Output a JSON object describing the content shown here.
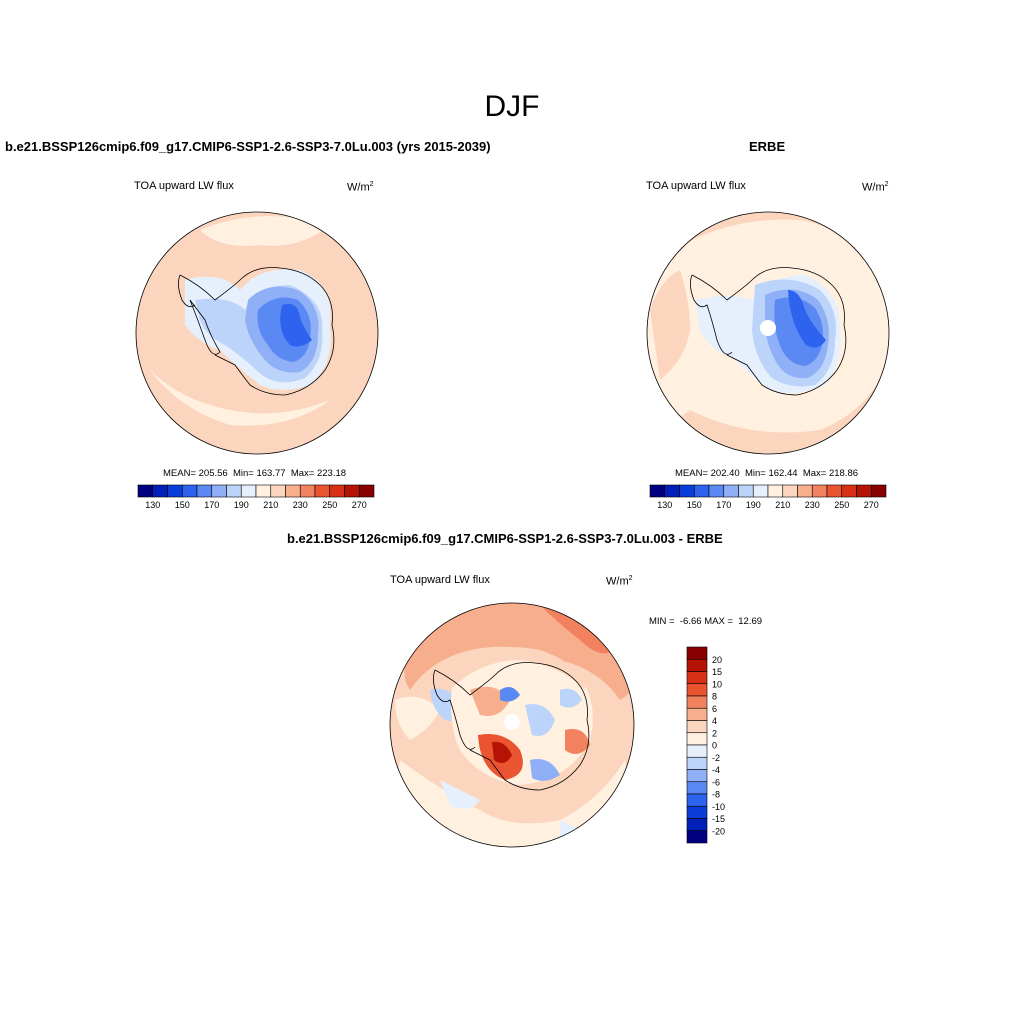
{
  "figure_title": "DJF",
  "panels": {
    "model": {
      "title": "b.e21.BSSP126cmip6.f09_g17.CMIP6-SSP1-2.6-SSP3-7.0Lu.003 (yrs 2015-2039)",
      "variable": "TOA upward LW flux",
      "units": "W/m",
      "units_exp": "2",
      "stats": {
        "mean_label": "MEAN=",
        "mean": "205.56",
        "min_label": "Min=",
        "min": "163.77",
        "max_label": "Max=",
        "max": "223.18"
      }
    },
    "obs": {
      "title": "ERBE",
      "variable": "TOA upward LW flux",
      "units": "W/m",
      "units_exp": "2",
      "stats": {
        "mean_label": "MEAN=",
        "mean": "202.40",
        "min_label": "Min=",
        "min": "162.44",
        "max_label": "Max=",
        "max": "218.86"
      }
    },
    "diff": {
      "title": "b.e21.BSSP126cmip6.f09_g17.CMIP6-SSP1-2.6-SSP3-7.0Lu.003 - ERBE",
      "variable": "TOA upward LW flux",
      "units": "W/m",
      "units_exp": "2",
      "minmax": {
        "min_label": "MIN =",
        "min": "-6.66",
        "max_label": "MAX =",
        "max": "12.69"
      }
    }
  },
  "chart_data": [
    {
      "type": "heatmap",
      "projection": "south-polar-stereographic",
      "title": "TOA upward LW flux",
      "units": "W/m2",
      "stats": {
        "mean": 205.56,
        "min": 163.77,
        "max": 223.18
      },
      "colorbar": {
        "orientation": "horizontal",
        "colors": [
          "#000080",
          "#0020b8",
          "#0b3ed8",
          "#2d63ee",
          "#5b89f3",
          "#8fb0f6",
          "#bcd3fa",
          "#e6f0fd",
          "#fff0e0",
          "#fbd5bd",
          "#f7ae8c",
          "#f2825f",
          "#ea5430",
          "#d83014",
          "#b51306",
          "#890000"
        ],
        "tick_labels": [
          "130",
          "150",
          "170",
          "190",
          "210",
          "230",
          "250",
          "270"
        ]
      }
    },
    {
      "type": "heatmap",
      "projection": "south-polar-stereographic",
      "title": "TOA upward LW flux",
      "units": "W/m2",
      "stats": {
        "mean": 202.4,
        "min": 162.44,
        "max": 218.86
      },
      "colorbar": {
        "orientation": "horizontal",
        "colors": [
          "#000080",
          "#0020b8",
          "#0b3ed8",
          "#2d63ee",
          "#5b89f3",
          "#8fb0f6",
          "#bcd3fa",
          "#e6f0fd",
          "#fff0e0",
          "#fbd5bd",
          "#f7ae8c",
          "#f2825f",
          "#ea5430",
          "#d83014",
          "#b51306",
          "#890000"
        ],
        "tick_labels": [
          "130",
          "150",
          "170",
          "190",
          "210",
          "230",
          "250",
          "270"
        ]
      }
    },
    {
      "type": "heatmap",
      "projection": "south-polar-stereographic",
      "title": "TOA upward LW flux",
      "units": "W/m2",
      "min": -6.66,
      "max": 12.69,
      "colorbar": {
        "orientation": "vertical",
        "colors_top_to_bottom": [
          "#890000",
          "#b51306",
          "#d83014",
          "#ea5430",
          "#f2825f",
          "#f7ae8c",
          "#fbd5bd",
          "#fff0e0",
          "#e6f0fd",
          "#bcd3fa",
          "#8fb0f6",
          "#5b89f3",
          "#2d63ee",
          "#0b3ed8",
          "#0020b8",
          "#000080"
        ],
        "tick_labels": [
          "20",
          "15",
          "10",
          "8",
          "6",
          "4",
          "2",
          "0",
          "-2",
          "-4",
          "-6",
          "-8",
          "-10",
          "-15",
          "-20"
        ]
      }
    }
  ]
}
